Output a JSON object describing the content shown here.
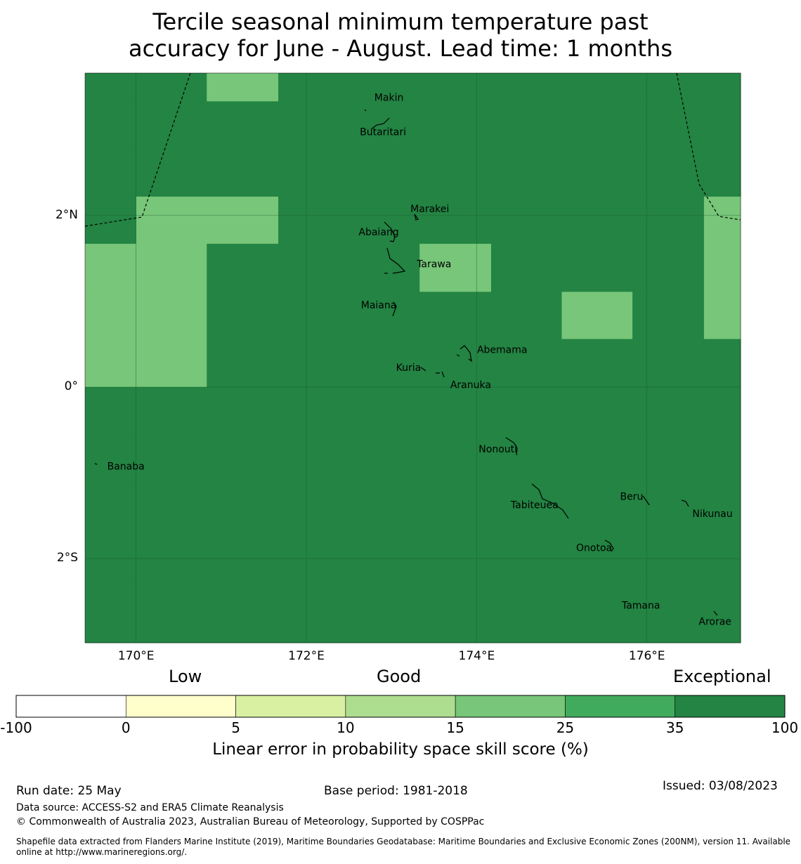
{
  "title": {
    "line1": "Tercile seasonal minimum temperature past",
    "line2": "accuracy for June - August. Lead time: 1 months"
  },
  "map": {
    "extent": {
      "lon_min": 169.4,
      "lon_max": 177.1,
      "lat_min": -2.98,
      "lat_max": 3.66
    },
    "lon_ticks": [
      {
        "value": 170,
        "label": "170°E"
      },
      {
        "value": 172,
        "label": "172°E"
      },
      {
        "value": 174,
        "label": "174°E"
      },
      {
        "value": 176,
        "label": "176°E"
      }
    ],
    "lat_ticks": [
      {
        "value": 2,
        "label": "2°N"
      },
      {
        "value": 0,
        "label": "0°"
      },
      {
        "value": -2,
        "label": "2°S"
      }
    ],
    "grid_cells": {
      "lon_edges": [
        169.4,
        170.0,
        170.83,
        171.67,
        172.5,
        173.33,
        174.17,
        175.0,
        175.83,
        176.67,
        177.1
      ],
      "lat_edges": [
        3.66,
        3.33,
        2.78,
        2.22,
        1.67,
        1.11,
        0.56,
        0.0,
        -0.56,
        -1.11,
        -1.67,
        -2.22,
        -2.98
      ],
      "values": [
        [
          35,
          35,
          20,
          35,
          40,
          35,
          35,
          35,
          40,
          40
        ],
        [
          35,
          35,
          35,
          35,
          35,
          40,
          40,
          40,
          40,
          35
        ],
        [
          35,
          35,
          35,
          35,
          35,
          35,
          35,
          35,
          40,
          40
        ],
        [
          35,
          20,
          20,
          35,
          35,
          35,
          35,
          35,
          35,
          20
        ],
        [
          20,
          20,
          35,
          35,
          35,
          20,
          35,
          35,
          35,
          20
        ],
        [
          20,
          20,
          35,
          35,
          35,
          35,
          35,
          20,
          35,
          20
        ],
        [
          20,
          20,
          35,
          35,
          35,
          35,
          35,
          35,
          35,
          35
        ],
        [
          35,
          35,
          40,
          35,
          35,
          35,
          35,
          35,
          40,
          35
        ],
        [
          35,
          35,
          40,
          35,
          40,
          40,
          35,
          35,
          40,
          35
        ],
        [
          40,
          40,
          40,
          40,
          40,
          40,
          35,
          35,
          35,
          35
        ],
        [
          40,
          40,
          40,
          40,
          40,
          40,
          40,
          35,
          35,
          35
        ],
        [
          40,
          40,
          40,
          40,
          40,
          40,
          40,
          40,
          40,
          40
        ]
      ]
    },
    "places": [
      {
        "name": "Makin",
        "lon": 172.97,
        "lat": 3.37
      },
      {
        "name": "Butaritari",
        "lon": 172.9,
        "lat": 2.97
      },
      {
        "name": "Marakei",
        "lon": 173.45,
        "lat": 2.07
      },
      {
        "name": "Abaiang",
        "lon": 172.85,
        "lat": 1.8
      },
      {
        "name": "Tarawa",
        "lon": 173.5,
        "lat": 1.43
      },
      {
        "name": "Maiana",
        "lon": 172.85,
        "lat": 0.95
      },
      {
        "name": "Abemama",
        "lon": 174.3,
        "lat": 0.43
      },
      {
        "name": "Kuria",
        "lon": 173.2,
        "lat": 0.22
      },
      {
        "name": "Aranuka",
        "lon": 173.93,
        "lat": 0.02
      },
      {
        "name": "Banaba",
        "lon": 169.88,
        "lat": -0.93
      },
      {
        "name": "Nonouti",
        "lon": 174.25,
        "lat": -0.73
      },
      {
        "name": "Beru",
        "lon": 175.82,
        "lat": -1.28
      },
      {
        "name": "Nikunau",
        "lon": 176.77,
        "lat": -1.48
      },
      {
        "name": "Tabiteuea",
        "lon": 174.68,
        "lat": -1.38
      },
      {
        "name": "Onotoa",
        "lon": 175.38,
        "lat": -1.88
      },
      {
        "name": "Tamana",
        "lon": 175.93,
        "lat": -2.55
      },
      {
        "name": "Arorae",
        "lon": 176.8,
        "lat": -2.74
      }
    ]
  },
  "colorbar": {
    "category_labels": [
      "Low",
      "Good",
      "Exceptional"
    ],
    "bins": [
      {
        "from": -100,
        "to": 0,
        "color": "#ffffff"
      },
      {
        "from": 0,
        "to": 5,
        "color": "#ffffcc"
      },
      {
        "from": 5,
        "to": 10,
        "color": "#d9f0a3"
      },
      {
        "from": 10,
        "to": 15,
        "color": "#addd8e"
      },
      {
        "from": 15,
        "to": 25,
        "color": "#78c679"
      },
      {
        "from": 25,
        "to": 35,
        "color": "#41ab5d"
      },
      {
        "from": 35,
        "to": 100,
        "color": "#238443"
      }
    ],
    "tick_labels": [
      "-100",
      "0",
      "5",
      "10",
      "15",
      "25",
      "35",
      "100"
    ],
    "title": "Linear error in probability space skill score (%)"
  },
  "footer": {
    "run_date": "Run date: 25 May",
    "base_period": "Base period: 1981-2018",
    "issued": "Issued: 03/08/2023",
    "data_source": "Data source: ACCESS-S2 and ERA5 Climate Reanalysis",
    "copyright": "© Commonwealth of Australia 2023, Australian Bureau of Meteorology, Supported by COSPPac",
    "shapefile_line1": "Shapefile data extracted from Flanders Marine Institute (2019), Maritime Boundaries Geodatabase: Maritime Boundaries and Exclusive Economic Zones (200NM), version 11. Available",
    "shapefile_line2": "online at http://www.marineregions.org/."
  }
}
